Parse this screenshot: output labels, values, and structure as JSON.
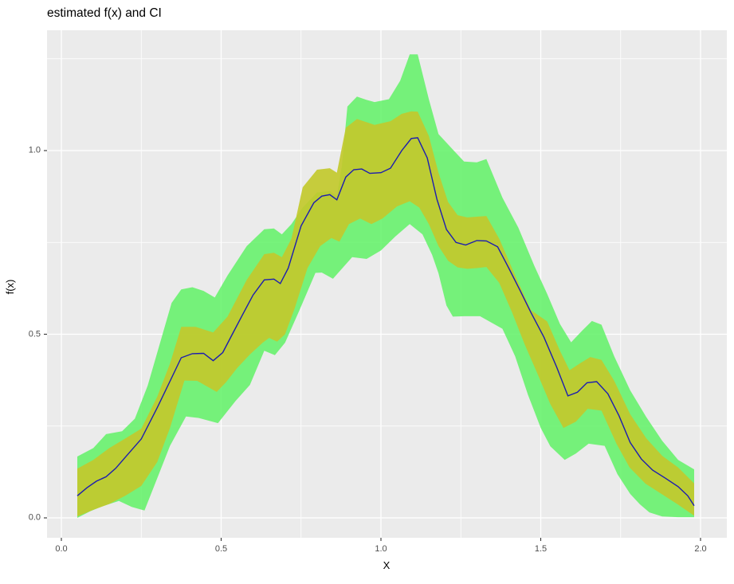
{
  "title": "estimated f(x) and CI",
  "axes": {
    "x": {
      "title": "X",
      "major_tick_labels": [
        "0.0",
        "0.5",
        "1.0",
        "1.5",
        "2.0"
      ],
      "major_tick_values": [
        0,
        0.5,
        1.0,
        1.5,
        2.0
      ],
      "minor_tick_values": [
        0.25,
        0.75,
        1.25,
        1.75
      ],
      "range": [
        -0.045,
        2.082
      ]
    },
    "y": {
      "title": "f(x)",
      "major_tick_labels": [
        "0.0",
        "0.5",
        "1.0"
      ],
      "major_tick_values": [
        0,
        0.5,
        1.0
      ],
      "minor_tick_values": [
        0.25,
        0.75,
        1.25
      ],
      "range": [
        -0.054,
        1.328
      ]
    }
  },
  "colors": {
    "page_background": "#FFFFFF",
    "panel_background": "#EBEBEB",
    "gridline": "#FFFFFF",
    "outer_band_fill": "#60F266",
    "outer_band_opacity": 0.85,
    "inner_band_fill": "#C2C92D",
    "inner_band_opacity": 0.92,
    "estimate_line": "#1C1CB0",
    "tick_mark": "#333333",
    "tick_text": "#4D4D4D",
    "title_text": "#000000"
  },
  "chart_data": {
    "type": "line-with-ci-ribbons",
    "title": "estimated f(x) and CI",
    "xlabel": "X",
    "ylabel": "f(x)",
    "xlim": [
      -0.045,
      2.082
    ],
    "ylim": [
      -0.054,
      1.328
    ],
    "grid": "white-on-gray, minor at 0.25 steps",
    "legend": "none",
    "series": [
      {
        "name": "estimate-line",
        "points": [
          [
            0.05,
            0.06
          ],
          [
            0.08,
            0.082
          ],
          [
            0.11,
            0.1
          ],
          [
            0.14,
            0.112
          ],
          [
            0.17,
            0.135
          ],
          [
            0.2,
            0.165
          ],
          [
            0.25,
            0.215
          ],
          [
            0.3,
            0.3
          ],
          [
            0.34,
            0.372
          ],
          [
            0.375,
            0.436
          ],
          [
            0.41,
            0.447
          ],
          [
            0.445,
            0.448
          ],
          [
            0.475,
            0.428
          ],
          [
            0.505,
            0.45
          ],
          [
            0.535,
            0.5
          ],
          [
            0.565,
            0.55
          ],
          [
            0.6,
            0.607
          ],
          [
            0.635,
            0.648
          ],
          [
            0.665,
            0.65
          ],
          [
            0.685,
            0.638
          ],
          [
            0.71,
            0.68
          ],
          [
            0.75,
            0.795
          ],
          [
            0.79,
            0.858
          ],
          [
            0.815,
            0.876
          ],
          [
            0.84,
            0.88
          ],
          [
            0.862,
            0.866
          ],
          [
            0.89,
            0.928
          ],
          [
            0.915,
            0.948
          ],
          [
            0.94,
            0.95
          ],
          [
            0.965,
            0.938
          ],
          [
            1.0,
            0.94
          ],
          [
            1.03,
            0.952
          ],
          [
            1.065,
            1.0
          ],
          [
            1.095,
            1.033
          ],
          [
            1.115,
            1.035
          ],
          [
            1.145,
            0.98
          ],
          [
            1.175,
            0.868
          ],
          [
            1.205,
            0.785
          ],
          [
            1.235,
            0.75
          ],
          [
            1.265,
            0.743
          ],
          [
            1.3,
            0.755
          ],
          [
            1.33,
            0.754
          ],
          [
            1.365,
            0.738
          ],
          [
            1.4,
            0.68
          ],
          [
            1.435,
            0.62
          ],
          [
            1.47,
            0.558
          ],
          [
            1.51,
            0.492
          ],
          [
            1.55,
            0.41
          ],
          [
            1.585,
            0.332
          ],
          [
            1.615,
            0.342
          ],
          [
            1.645,
            0.368
          ],
          [
            1.675,
            0.371
          ],
          [
            1.71,
            0.338
          ],
          [
            1.745,
            0.278
          ],
          [
            1.78,
            0.205
          ],
          [
            1.815,
            0.16
          ],
          [
            1.85,
            0.13
          ],
          [
            1.89,
            0.108
          ],
          [
            1.93,
            0.085
          ],
          [
            1.96,
            0.06
          ],
          [
            1.98,
            0.033
          ]
        ]
      },
      {
        "name": "inner-ci-upper",
        "points": [
          [
            0.05,
            0.134
          ],
          [
            0.1,
            0.158
          ],
          [
            0.15,
            0.19
          ],
          [
            0.2,
            0.216
          ],
          [
            0.25,
            0.243
          ],
          [
            0.3,
            0.33
          ],
          [
            0.34,
            0.42
          ],
          [
            0.375,
            0.52
          ],
          [
            0.42,
            0.52
          ],
          [
            0.475,
            0.505
          ],
          [
            0.52,
            0.548
          ],
          [
            0.58,
            0.648
          ],
          [
            0.635,
            0.718
          ],
          [
            0.665,
            0.722
          ],
          [
            0.69,
            0.71
          ],
          [
            0.72,
            0.76
          ],
          [
            0.755,
            0.9
          ],
          [
            0.8,
            0.948
          ],
          [
            0.84,
            0.952
          ],
          [
            0.862,
            0.94
          ],
          [
            0.89,
            1.062
          ],
          [
            0.925,
            1.086
          ],
          [
            0.98,
            1.07
          ],
          [
            1.03,
            1.08
          ],
          [
            1.065,
            1.1
          ],
          [
            1.095,
            1.107
          ],
          [
            1.115,
            1.106
          ],
          [
            1.15,
            1.04
          ],
          [
            1.18,
            0.94
          ],
          [
            1.21,
            0.86
          ],
          [
            1.24,
            0.824
          ],
          [
            1.27,
            0.818
          ],
          [
            1.3,
            0.82
          ],
          [
            1.33,
            0.822
          ],
          [
            1.37,
            0.76
          ],
          [
            1.42,
            0.66
          ],
          [
            1.47,
            0.565
          ],
          [
            1.52,
            0.535
          ],
          [
            1.56,
            0.455
          ],
          [
            1.59,
            0.402
          ],
          [
            1.625,
            0.422
          ],
          [
            1.655,
            0.438
          ],
          [
            1.69,
            0.43
          ],
          [
            1.73,
            0.373
          ],
          [
            1.78,
            0.282
          ],
          [
            1.83,
            0.217
          ],
          [
            1.88,
            0.169
          ],
          [
            1.93,
            0.137
          ],
          [
            1.98,
            0.094
          ]
        ]
      },
      {
        "name": "inner-ci-lower",
        "points": [
          [
            0.05,
            0.004
          ],
          [
            0.1,
            0.022
          ],
          [
            0.15,
            0.038
          ],
          [
            0.2,
            0.06
          ],
          [
            0.25,
            0.087
          ],
          [
            0.3,
            0.152
          ],
          [
            0.34,
            0.245
          ],
          [
            0.385,
            0.374
          ],
          [
            0.425,
            0.373
          ],
          [
            0.486,
            0.343
          ],
          [
            0.515,
            0.369
          ],
          [
            0.55,
            0.408
          ],
          [
            0.59,
            0.445
          ],
          [
            0.63,
            0.477
          ],
          [
            0.65,
            0.49
          ],
          [
            0.675,
            0.48
          ],
          [
            0.7,
            0.5
          ],
          [
            0.73,
            0.57
          ],
          [
            0.77,
            0.68
          ],
          [
            0.81,
            0.74
          ],
          [
            0.845,
            0.762
          ],
          [
            0.87,
            0.752
          ],
          [
            0.9,
            0.8
          ],
          [
            0.935,
            0.815
          ],
          [
            0.97,
            0.8
          ],
          [
            1.005,
            0.815
          ],
          [
            1.05,
            0.848
          ],
          [
            1.09,
            0.862
          ],
          [
            1.12,
            0.845
          ],
          [
            1.15,
            0.8
          ],
          [
            1.18,
            0.74
          ],
          [
            1.21,
            0.7
          ],
          [
            1.24,
            0.682
          ],
          [
            1.27,
            0.678
          ],
          [
            1.3,
            0.68
          ],
          [
            1.33,
            0.683
          ],
          [
            1.37,
            0.64
          ],
          [
            1.41,
            0.56
          ],
          [
            1.45,
            0.472
          ],
          [
            1.49,
            0.392
          ],
          [
            1.53,
            0.31
          ],
          [
            1.571,
            0.245
          ],
          [
            1.61,
            0.262
          ],
          [
            1.647,
            0.297
          ],
          [
            1.69,
            0.292
          ],
          [
            1.737,
            0.202
          ],
          [
            1.778,
            0.137
          ],
          [
            1.828,
            0.093
          ],
          [
            1.878,
            0.065
          ],
          [
            1.928,
            0.037
          ],
          [
            1.98,
            0.006
          ]
        ]
      },
      {
        "name": "outer-ci-upper",
        "points": [
          [
            0.05,
            0.167
          ],
          [
            0.1,
            0.19
          ],
          [
            0.14,
            0.228
          ],
          [
            0.19,
            0.236
          ],
          [
            0.23,
            0.27
          ],
          [
            0.27,
            0.36
          ],
          [
            0.31,
            0.48
          ],
          [
            0.345,
            0.585
          ],
          [
            0.375,
            0.622
          ],
          [
            0.41,
            0.628
          ],
          [
            0.445,
            0.618
          ],
          [
            0.48,
            0.6
          ],
          [
            0.52,
            0.66
          ],
          [
            0.58,
            0.74
          ],
          [
            0.635,
            0.786
          ],
          [
            0.665,
            0.788
          ],
          [
            0.69,
            0.772
          ],
          [
            0.72,
            0.8
          ],
          [
            0.755,
            0.845
          ],
          [
            0.8,
            0.886
          ],
          [
            0.84,
            0.89
          ],
          [
            0.862,
            0.876
          ],
          [
            0.878,
            0.96
          ],
          [
            0.895,
            1.12
          ],
          [
            0.925,
            1.147
          ],
          [
            0.955,
            1.138
          ],
          [
            0.98,
            1.132
          ],
          [
            1.025,
            1.14
          ],
          [
            1.06,
            1.19
          ],
          [
            1.09,
            1.262
          ],
          [
            1.115,
            1.262
          ],
          [
            1.15,
            1.14
          ],
          [
            1.18,
            1.045
          ],
          [
            1.23,
            0.998
          ],
          [
            1.26,
            0.97
          ],
          [
            1.3,
            0.968
          ],
          [
            1.33,
            0.977
          ],
          [
            1.38,
            0.872
          ],
          [
            1.43,
            0.79
          ],
          [
            1.48,
            0.686
          ],
          [
            1.52,
            0.61
          ],
          [
            1.56,
            0.528
          ],
          [
            1.595,
            0.478
          ],
          [
            1.63,
            0.51
          ],
          [
            1.66,
            0.536
          ],
          [
            1.69,
            0.526
          ],
          [
            1.73,
            0.44
          ],
          [
            1.78,
            0.347
          ],
          [
            1.83,
            0.275
          ],
          [
            1.88,
            0.21
          ],
          [
            1.93,
            0.158
          ],
          [
            1.98,
            0.132
          ]
        ]
      },
      {
        "name": "outer-ci-lower",
        "points": [
          [
            0.05,
            0.0
          ],
          [
            0.09,
            0.018
          ],
          [
            0.13,
            0.032
          ],
          [
            0.18,
            0.046
          ],
          [
            0.22,
            0.03
          ],
          [
            0.26,
            0.02
          ],
          [
            0.3,
            0.108
          ],
          [
            0.34,
            0.196
          ],
          [
            0.39,
            0.276
          ],
          [
            0.43,
            0.272
          ],
          [
            0.49,
            0.258
          ],
          [
            0.545,
            0.318
          ],
          [
            0.59,
            0.362
          ],
          [
            0.635,
            0.455
          ],
          [
            0.668,
            0.443
          ],
          [
            0.7,
            0.477
          ],
          [
            0.745,
            0.565
          ],
          [
            0.795,
            0.667
          ],
          [
            0.815,
            0.668
          ],
          [
            0.85,
            0.651
          ],
          [
            0.91,
            0.71
          ],
          [
            0.955,
            0.705
          ],
          [
            1.0,
            0.728
          ],
          [
            1.045,
            0.766
          ],
          [
            1.09,
            0.8
          ],
          [
            1.13,
            0.772
          ],
          [
            1.16,
            0.716
          ],
          [
            1.18,
            0.666
          ],
          [
            1.205,
            0.578
          ],
          [
            1.225,
            0.548
          ],
          [
            1.26,
            0.549
          ],
          [
            1.31,
            0.549
          ],
          [
            1.38,
            0.515
          ],
          [
            1.42,
            0.44
          ],
          [
            1.46,
            0.335
          ],
          [
            1.5,
            0.245
          ],
          [
            1.53,
            0.195
          ],
          [
            1.575,
            0.158
          ],
          [
            1.61,
            0.175
          ],
          [
            1.65,
            0.202
          ],
          [
            1.7,
            0.196
          ],
          [
            1.74,
            0.119
          ],
          [
            1.78,
            0.065
          ],
          [
            1.81,
            0.037
          ],
          [
            1.84,
            0.015
          ],
          [
            1.88,
            0.004
          ],
          [
            1.93,
            0.002
          ],
          [
            1.98,
            0.002
          ]
        ]
      }
    ]
  }
}
